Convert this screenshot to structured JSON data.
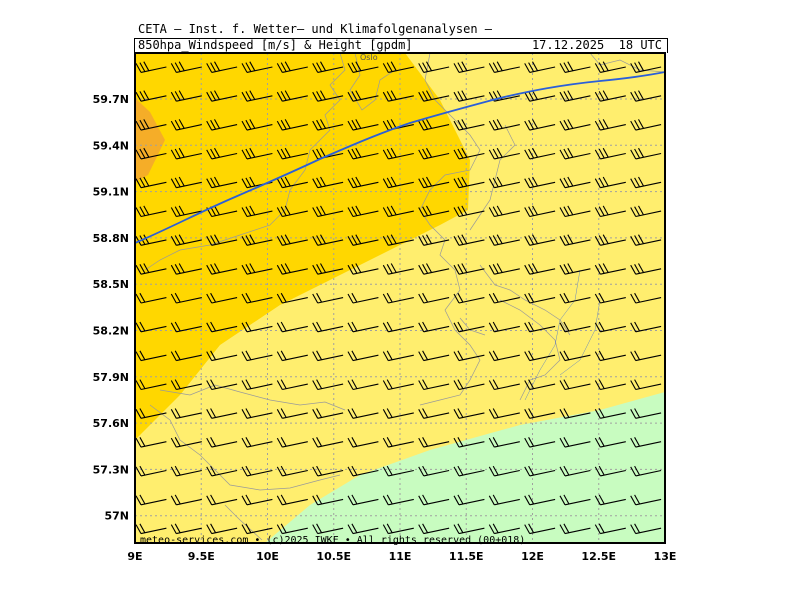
{
  "header": {
    "title": "CETA — Inst. f. Wetter— und Klimafolgenanalysen —",
    "subtitle": "850hpa_Windspeed [m/s] & Height [gpdm]",
    "datetime": "17.12.2025  18 UTC"
  },
  "credit": "meteo-services.com • (c)2025 IWKF • All rights reserved (00+018)",
  "city_label": "Oslo",
  "axes": {
    "lon_labels": [
      "9E",
      "9.5E",
      "10E",
      "10.5E",
      "11E",
      "11.5E",
      "12E",
      "12.5E",
      "13E"
    ],
    "lat_labels": [
      "59.7N",
      "59.4N",
      "59.1N",
      "58.8N",
      "58.5N",
      "58.2N",
      "57.9N",
      "57.6N",
      "57.3N",
      "57N"
    ]
  },
  "colors": {
    "light_yellow": "#ffee6e",
    "gold": "#ffd700",
    "orange": "#f5ad28",
    "light_green": "#c8fcc0",
    "contour": "#2b5fd9",
    "grid": "#a0a0a0",
    "coast": "#9a9a9a",
    "barb": "#000000"
  }
}
